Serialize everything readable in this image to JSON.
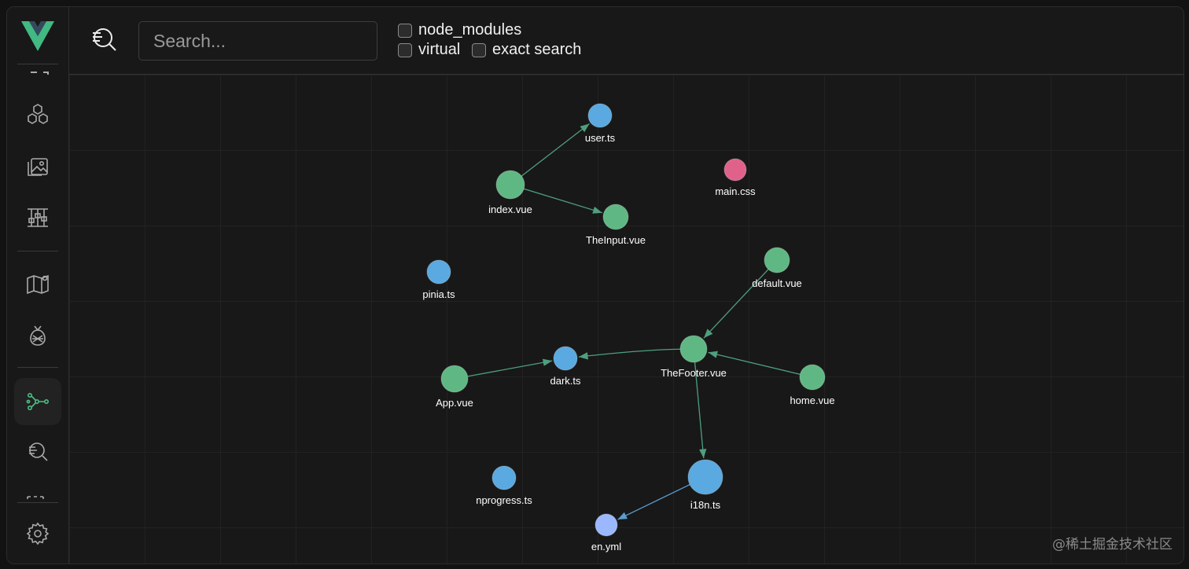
{
  "search": {
    "placeholder": "Search..."
  },
  "filters": {
    "node_modules": "node_modules",
    "virtual": "virtual",
    "exact_search": "exact search"
  },
  "sidebar": {
    "items": [
      {
        "name": "components-icon"
      },
      {
        "name": "assets-icon"
      },
      {
        "name": "timeline-icon"
      },
      {
        "name": "router-map-icon"
      },
      {
        "name": "pinia-icon"
      },
      {
        "name": "graph-icon",
        "active": true
      },
      {
        "name": "inspect-icon"
      },
      {
        "name": "settings-icon"
      }
    ]
  },
  "colors": {
    "vue": "#5fb883",
    "ts": "#5aa9e0",
    "css": "#e0628a",
    "yml": "#9bb8ff",
    "edge": "#4f9f7e",
    "edge_blue": "#5b9dd1"
  },
  "graph": {
    "nodes": [
      {
        "id": "user",
        "label": "user.ts",
        "type": "ts"
      },
      {
        "id": "index",
        "label": "index.vue",
        "type": "vue"
      },
      {
        "id": "theinput",
        "label": "TheInput.vue",
        "type": "vue"
      },
      {
        "id": "main",
        "label": "main.css",
        "type": "css"
      },
      {
        "id": "pinia",
        "label": "pinia.ts",
        "type": "ts"
      },
      {
        "id": "default",
        "label": "default.vue",
        "type": "vue"
      },
      {
        "id": "thefooter",
        "label": "TheFooter.vue",
        "type": "vue"
      },
      {
        "id": "dark",
        "label": "dark.ts",
        "type": "ts"
      },
      {
        "id": "app",
        "label": "App.vue",
        "type": "vue"
      },
      {
        "id": "home",
        "label": "home.vue",
        "type": "vue"
      },
      {
        "id": "nprogress",
        "label": "nprogress.ts",
        "type": "ts"
      },
      {
        "id": "i18n",
        "label": "i18n.ts",
        "type": "ts"
      },
      {
        "id": "enyml",
        "label": "en.yml",
        "type": "yml"
      }
    ],
    "edges": [
      {
        "from": "index",
        "to": "user"
      },
      {
        "from": "index",
        "to": "theinput"
      },
      {
        "from": "default",
        "to": "thefooter"
      },
      {
        "from": "home",
        "to": "thefooter"
      },
      {
        "from": "thefooter",
        "to": "dark"
      },
      {
        "from": "app",
        "to": "dark"
      },
      {
        "from": "thefooter",
        "to": "i18n"
      },
      {
        "from": "i18n",
        "to": "enyml"
      }
    ]
  },
  "watermark": "@稀土掘金技术社区"
}
